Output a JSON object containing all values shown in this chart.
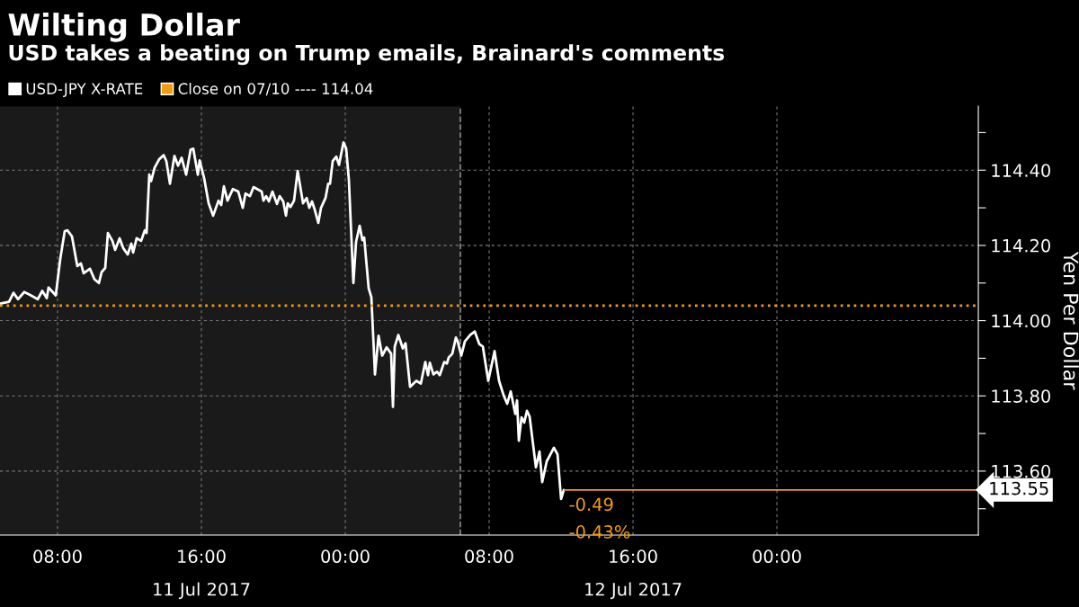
{
  "chart_data": {
    "type": "line",
    "title": "Wilting Dollar",
    "subtitle": "USD takes a beating on Trump emails, Brainard's comments",
    "ylabel": "Yen Per Dollar",
    "x": [
      "2017-07-11T04:48",
      "2017-07-11T05:18",
      "2017-07-11T05:33",
      "2017-07-11T05:48",
      "2017-07-11T06:09",
      "2017-07-11T06:27",
      "2017-07-11T06:54",
      "2017-07-11T07:09",
      "2017-07-11T07:24",
      "2017-07-11T07:30",
      "2017-07-11T07:54",
      "2017-07-11T08:09",
      "2017-07-11T08:24",
      "2017-07-11T08:33",
      "2017-07-11T08:48",
      "2017-07-11T09:06",
      "2017-07-11T09:18",
      "2017-07-11T09:27",
      "2017-07-11T09:48",
      "2017-07-11T10:03",
      "2017-07-11T10:18",
      "2017-07-11T10:27",
      "2017-07-11T10:39",
      "2017-07-11T10:48",
      "2017-07-11T11:03",
      "2017-07-11T11:12",
      "2017-07-11T11:27",
      "2017-07-11T11:39",
      "2017-07-11T11:54",
      "2017-07-11T12:06",
      "2017-07-11T12:12",
      "2017-07-11T12:24",
      "2017-07-11T12:39",
      "2017-07-11T12:51",
      "2017-07-11T12:57",
      "2017-07-11T13:06",
      "2017-07-11T13:12",
      "2017-07-11T13:24",
      "2017-07-11T13:39",
      "2017-07-11T13:54",
      "2017-07-11T14:03",
      "2017-07-11T14:15",
      "2017-07-11T14:30",
      "2017-07-11T14:42",
      "2017-07-11T14:54",
      "2017-07-11T15:09",
      "2017-07-11T15:24",
      "2017-07-11T15:33",
      "2017-07-11T15:48",
      "2017-07-11T15:54",
      "2017-07-11T16:09",
      "2017-07-11T16:24",
      "2017-07-11T16:39",
      "2017-07-11T16:57",
      "2017-07-11T17:06",
      "2017-07-11T17:15",
      "2017-07-11T17:27",
      "2017-07-11T17:45",
      "2017-07-11T18:03",
      "2017-07-11T18:18",
      "2017-07-11T18:27",
      "2017-07-11T18:42",
      "2017-07-11T18:54",
      "2017-07-11T19:21",
      "2017-07-11T19:27",
      "2017-07-11T19:36",
      "2017-07-11T19:45",
      "2017-07-11T19:57",
      "2017-07-11T20:12",
      "2017-07-11T20:21",
      "2017-07-11T20:33",
      "2017-07-11T20:42",
      "2017-07-11T20:48",
      "2017-07-11T20:57",
      "2017-07-11T21:09",
      "2017-07-11T21:21",
      "2017-07-11T21:39",
      "2017-07-11T21:51",
      "2017-07-11T22:00",
      "2017-07-11T22:09",
      "2017-07-11T22:18",
      "2017-07-11T22:30",
      "2017-07-11T22:39",
      "2017-07-11T22:54",
      "2017-07-11T23:03",
      "2017-07-11T23:09",
      "2017-07-11T23:18",
      "2017-07-11T23:30",
      "2017-07-11T23:39",
      "2017-07-11T23:54",
      "2017-07-12T00:03",
      "2017-07-12T00:12",
      "2017-07-12T00:27",
      "2017-07-12T00:36",
      "2017-07-12T00:48",
      "2017-07-12T00:57",
      "2017-07-12T01:03",
      "2017-07-12T01:18",
      "2017-07-12T01:27",
      "2017-07-12T01:39",
      "2017-07-12T01:51",
      "2017-07-12T02:03",
      "2017-07-12T02:18",
      "2017-07-12T02:33",
      "2017-07-12T02:39",
      "2017-07-12T02:45",
      "2017-07-12T02:57",
      "2017-07-12T03:12",
      "2017-07-12T03:21",
      "2017-07-12T03:36",
      "2017-07-12T03:57",
      "2017-07-12T04:12",
      "2017-07-12T04:27",
      "2017-07-12T04:36",
      "2017-07-12T04:42",
      "2017-07-12T04:54",
      "2017-07-12T05:06",
      "2017-07-12T05:15",
      "2017-07-12T05:30",
      "2017-07-12T05:39",
      "2017-07-12T05:45",
      "2017-07-12T05:57",
      "2017-07-12T06:09",
      "2017-07-12T06:15",
      "2017-07-12T06:27",
      "2017-07-12T06:39",
      "2017-07-12T06:57",
      "2017-07-12T07:12",
      "2017-07-12T07:27",
      "2017-07-12T07:39",
      "2017-07-12T07:57",
      "2017-07-12T08:18",
      "2017-07-12T08:33",
      "2017-07-12T08:48",
      "2017-07-12T09:00",
      "2017-07-12T09:12",
      "2017-07-12T09:27",
      "2017-07-12T09:33",
      "2017-07-12T09:39",
      "2017-07-12T09:48",
      "2017-07-12T09:57",
      "2017-07-12T10:06",
      "2017-07-12T10:15",
      "2017-07-12T10:36",
      "2017-07-12T10:48",
      "2017-07-12T10:57",
      "2017-07-12T11:12",
      "2017-07-12T11:36",
      "2017-07-12T11:48",
      "2017-07-12T12:00",
      "2017-07-12T12:09"
    ],
    "series": [
      {
        "name": "USD-JPY X-RATE",
        "color": "#ffffff",
        "values": [
          114.045,
          114.05,
          114.074,
          114.057,
          114.076,
          114.069,
          114.057,
          114.079,
          114.06,
          114.088,
          114.067,
          114.164,
          114.238,
          114.24,
          114.224,
          114.145,
          114.152,
          114.126,
          114.138,
          114.11,
          114.1,
          114.129,
          114.14,
          114.233,
          114.212,
          114.188,
          114.219,
          114.193,
          114.176,
          114.205,
          114.181,
          114.219,
          114.212,
          114.24,
          114.233,
          114.388,
          114.371,
          114.407,
          114.429,
          114.44,
          114.424,
          114.364,
          114.438,
          114.412,
          114.433,
          114.388,
          114.455,
          114.457,
          114.388,
          114.426,
          114.379,
          114.312,
          114.279,
          114.319,
          114.307,
          114.357,
          114.319,
          114.35,
          114.343,
          114.3,
          114.338,
          114.331,
          114.355,
          114.343,
          114.319,
          114.331,
          114.317,
          114.343,
          114.31,
          114.331,
          114.317,
          114.279,
          114.312,
          114.302,
          114.319,
          114.398,
          114.312,
          114.326,
          114.3,
          114.317,
          114.295,
          114.26,
          114.3,
          114.326,
          114.364,
          114.364,
          114.424,
          114.436,
          114.414,
          114.474,
          114.457,
          114.374,
          114.1,
          114.21,
          114.252,
          114.214,
          114.221,
          114.086,
          114.062,
          113.857,
          113.96,
          113.907,
          113.929,
          113.912,
          113.771,
          113.931,
          113.962,
          113.926,
          113.94,
          113.824,
          113.84,
          113.833,
          113.89,
          113.855,
          113.888,
          113.857,
          113.864,
          113.855,
          113.89,
          113.886,
          113.902,
          113.912,
          113.955,
          113.945,
          113.907,
          113.945,
          113.962,
          113.971,
          113.938,
          113.931,
          113.84,
          113.919,
          113.84,
          113.802,
          113.779,
          113.812,
          113.752,
          113.788,
          113.681,
          113.743,
          113.729,
          113.76,
          113.745,
          113.61,
          113.652,
          113.571,
          113.626,
          113.662,
          113.645,
          113.526,
          113.55
        ]
      }
    ],
    "xlim": [
      "2017-07-11T04:48",
      "2017-07-13T11:12"
    ],
    "xticks": [
      {
        "value": "2017-07-11T08:00",
        "label": "08:00"
      },
      {
        "value": "2017-07-11T16:00",
        "label": "16:00"
      },
      {
        "value": "2017-07-12T00:00",
        "label": "00:00"
      },
      {
        "value": "2017-07-12T08:00",
        "label": "08:00"
      },
      {
        "value": "2017-07-12T16:00",
        "label": "16:00"
      },
      {
        "value": "2017-07-13T00:00",
        "label": "00:00"
      }
    ],
    "x2lim": [
      "2017-07-11T04:48",
      "2017-07-13T11:12"
    ],
    "x2ticks": [
      {
        "value": "2017-07-11T16:00",
        "label": "11 Jul 2017"
      },
      {
        "value": "2017-07-12T16:00",
        "label": "12 Jul 2017"
      }
    ],
    "ylim": [
      113.43,
      114.57
    ],
    "yticks": [
      {
        "value": 113.5,
        "label": null
      },
      {
        "value": 113.6,
        "label": "113.60"
      },
      {
        "value": 113.7,
        "label": null
      },
      {
        "value": 113.8,
        "label": "113.80"
      },
      {
        "value": 113.9,
        "label": null
      },
      {
        "value": 114.0,
        "label": "114.00"
      },
      {
        "value": 114.1,
        "label": null
      },
      {
        "value": 114.2,
        "label": "114.20"
      },
      {
        "value": 114.3,
        "label": null
      },
      {
        "value": 114.4,
        "label": "114.40"
      },
      {
        "value": 114.5,
        "label": null
      }
    ],
    "ref_lines": [
      {
        "axis": "y",
        "value": 114.04,
        "label": "Close on 07/10 ---- 114.04",
        "color": "#f39c12",
        "line_style": "dotted"
      },
      {
        "axis": "y",
        "value": 113.55,
        "label": "113.55",
        "color": "#f39c12",
        "line_style": "solid"
      },
      {
        "axis": "x",
        "value": "2017-07-12T06:24",
        "color": "#888888",
        "line_style": "dashed"
      }
    ],
    "bands": [
      {
        "axis": "x",
        "from": "2017-07-11T04:48",
        "to": "2017-07-12T06:24",
        "color": "#1a1a1a"
      }
    ],
    "annotations": [
      {
        "text": "-0.49",
        "x": "2017-07-12T12:09",
        "y": 113.55
      },
      {
        "text": "-0.43%",
        "x": "2017-07-12T12:09",
        "y": 113.55
      }
    ],
    "grid": true,
    "legend": "top left"
  }
}
